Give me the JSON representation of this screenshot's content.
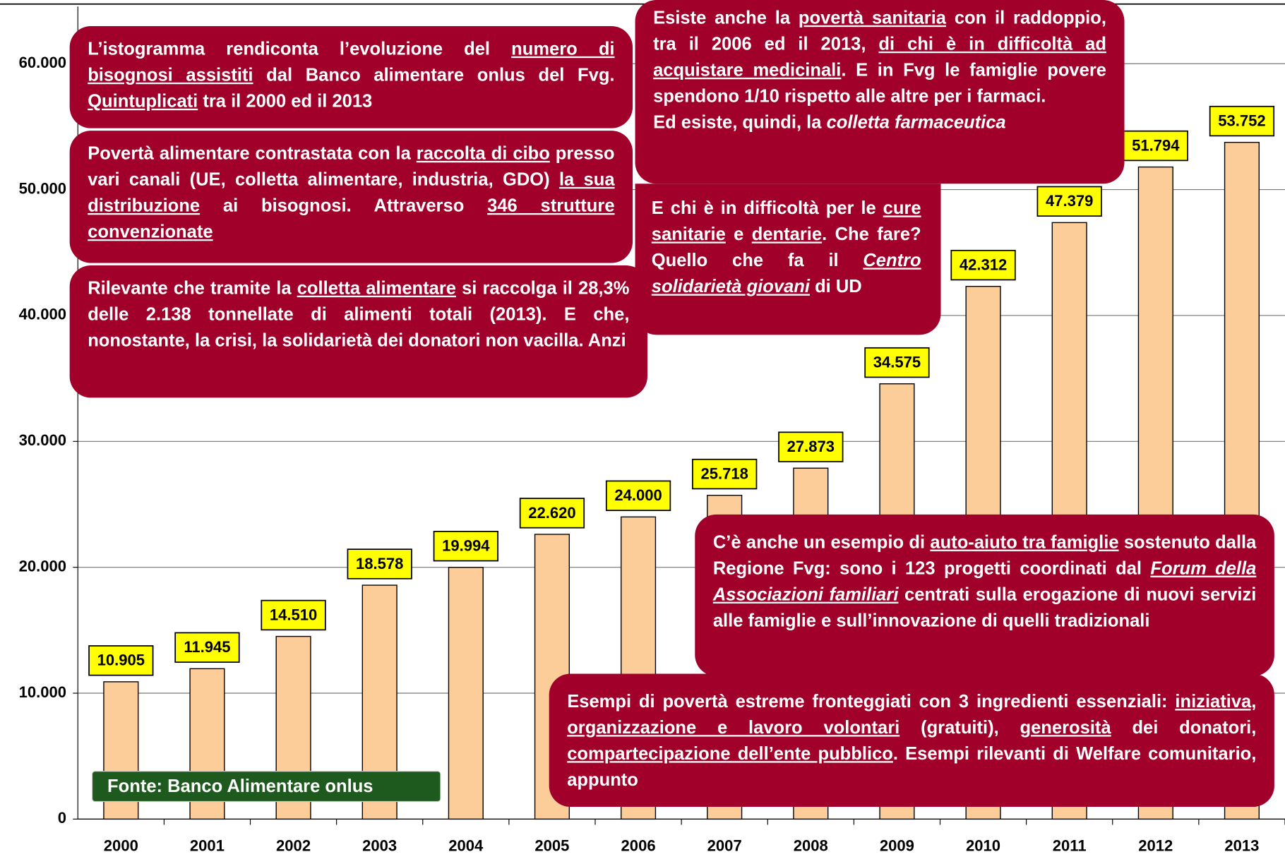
{
  "chart_data": {
    "type": "bar",
    "categories": [
      "2000",
      "2001",
      "2002",
      "2003",
      "2004",
      "2005",
      "2006",
      "2007",
      "2008",
      "2009",
      "2010",
      "2011",
      "2012",
      "2013"
    ],
    "values": [
      10905,
      11945,
      14510,
      18578,
      19994,
      22620,
      24000,
      25718,
      27873,
      34575,
      42312,
      47379,
      51794,
      53752
    ],
    "value_labels": [
      "10.905",
      "11.945",
      "14.510",
      "18.578",
      "19.994",
      "22.620",
      "24.000",
      "25.718",
      "27.873",
      "34.575",
      "42.312",
      "47.379",
      "51.794",
      "53.752"
    ],
    "color": "#fccc99",
    "label_color": "#ffff00",
    "ylim": [
      0,
      60000
    ],
    "yticks": [
      {
        "value": 0,
        "label": "0"
      },
      {
        "value": 10000,
        "label": "10.000"
      },
      {
        "value": 20000,
        "label": "20.000"
      },
      {
        "value": 30000,
        "label": "30.000"
      },
      {
        "value": 40000,
        "label": "40.000"
      },
      {
        "value": 50000,
        "label": "50.000"
      },
      {
        "value": 60000,
        "label": "60.000"
      }
    ],
    "grid": true,
    "source": "Fonte: Banco Alimentare onlus",
    "annotations": [
      {
        "paragraphs": [
          [
            {
              "text": "L’istogramma rendiconta l’evoluzione del "
            },
            {
              "text": "numero di bisognosi assistiti",
              "style": "u"
            },
            {
              "text": " dal Banco alimentare onlus del Fvg. "
            },
            {
              "text": "Quintuplicati",
              "style": "u"
            },
            {
              "text": " tra il 2000 ed il 2013"
            }
          ]
        ]
      },
      {
        "paragraphs": [
          [
            {
              "text": "Povertà alimentare contrastata  con la "
            },
            {
              "text": "raccolta di cibo",
              "style": "u"
            },
            {
              "text": " presso vari canali (UE, colletta alimentare, industria, GDO) "
            },
            {
              "text": "la sua distribuzione",
              "style": "u"
            },
            {
              "text": " ai bisognosi. Attraverso "
            },
            {
              "text": "346 strutture convenzionate",
              "style": "u"
            }
          ]
        ]
      },
      {
        "paragraphs": [
          [
            {
              "text": "Rilevante che tramite la "
            },
            {
              "text": "colletta alimentare",
              "style": "u"
            },
            {
              "text": " si raccolga il 28,3% delle 2.138 tonnellate di alimenti totali (2013). E che, nonostante, la crisi, la solidarietà dei donatori non vacilla. Anzi"
            }
          ]
        ]
      },
      {
        "paragraphs": [
          [
            {
              "text": "Esiste anche la "
            },
            {
              "text": "povertà sanitaria",
              "style": "u"
            },
            {
              "text": " con il raddoppio, tra il 2006 ed il 2013, "
            },
            {
              "text": "di chi è in difficoltà ad acquistare medicinali",
              "style": "u"
            },
            {
              "text": ". E in Fvg le famiglie povere spendono 1/10 rispetto alle altre per i farmaci."
            }
          ],
          [
            {
              "text": "Ed esiste, quindi, la "
            },
            {
              "text": "colletta farmaceutica",
              "style": "i"
            }
          ]
        ]
      },
      {
        "paragraphs": [
          [
            {
              "text": "E chi è in difficoltà per le "
            },
            {
              "text": "cure sanitarie",
              "style": "u"
            },
            {
              "text": " e "
            },
            {
              "text": "dentarie",
              "style": "u"
            },
            {
              "text": ". Che fare? Quello che fa il "
            },
            {
              "text": "Centro solidarietà giovani",
              "style": "ui"
            },
            {
              "text": " di UD"
            }
          ]
        ]
      },
      {
        "paragraphs": [
          [
            {
              "text": "C’è anche un esempio di "
            },
            {
              "text": "auto-aiuto tra famiglie",
              "style": "u"
            },
            {
              "text": " sostenuto dalla Regione Fvg: sono i 123 progetti coordinati dal "
            },
            {
              "text": "Forum della Associazioni familiari",
              "style": "ui"
            },
            {
              "text": " centrati sulla erogazione di nuovi servizi alle famiglie e sull’innovazione di quelli tradizionali"
            }
          ]
        ]
      },
      {
        "paragraphs": [
          [
            {
              "text": "Esempi di povertà estreme fronteggiati con 3 ingredienti essenziali: "
            },
            {
              "text": "iniziativa, organizzazione e lavoro volontari",
              "style": "u"
            },
            {
              "text": " (gratuiti), "
            },
            {
              "text": "generosità",
              "style": "u"
            },
            {
              "text": " dei donatori, "
            },
            {
              "text": "compartecipazione dell’ente pubblico",
              "style": "u"
            },
            {
              "text": ". Esempi rilevanti di Welfare comunitario, appunto"
            }
          ]
        ]
      }
    ]
  }
}
